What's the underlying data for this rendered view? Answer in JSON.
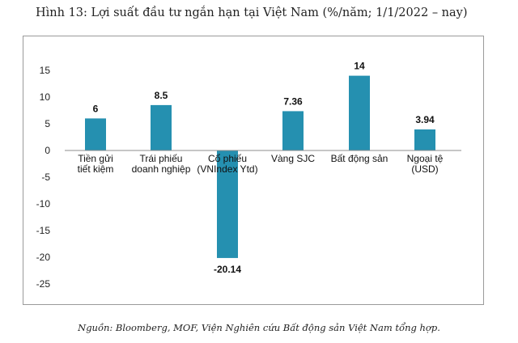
{
  "title": "Hình 13: Lợi suất đầu tư ngắn hạn tại Việt Nam (%/năm; 1/1/2022 – nay)",
  "source": "Nguồn: Bloomberg, MOF, Viện Nghiên cứu Bất động sản Việt Nam tổng hợp.",
  "colors": {
    "bar": "#2590b0",
    "axis": "#8c8c8c"
  },
  "chart_data": {
    "type": "bar",
    "title": "Hình 13: Lợi suất đầu tư ngắn hạn tại Việt Nam (%/năm; 1/1/2022 – nay)",
    "xlabel": "",
    "ylabel": "",
    "ylim": [
      -25,
      15
    ],
    "yticks": [
      15,
      10,
      5,
      0,
      -5,
      -10,
      -15,
      -20,
      -25
    ],
    "grid": false,
    "categories": [
      [
        "Tiền gửi",
        "tiết kiệm"
      ],
      [
        "Trái phiếu",
        "doanh nghiệp"
      ],
      [
        "Cổ phiếu",
        "(VNIndex Ytd)"
      ],
      [
        "Vàng SJC"
      ],
      [
        "Bất động sản"
      ],
      [
        "Ngoại tệ",
        "(USD)"
      ]
    ],
    "values": [
      6,
      8.5,
      -20.14,
      7.36,
      14,
      3.94
    ],
    "value_labels": [
      "6",
      "8.5",
      "-20.14",
      "7.36",
      "14",
      "3.94"
    ]
  }
}
